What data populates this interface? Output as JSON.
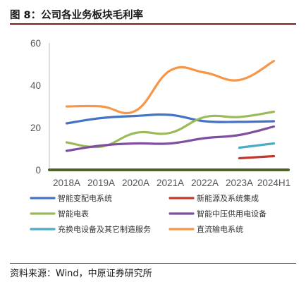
{
  "figure": {
    "title": "图 8：公司各业务板块毛利率",
    "source": "资料来源：Wind，中原证券研究所"
  },
  "chart_data": {
    "type": "line",
    "title": "",
    "xlabel": "",
    "ylabel": "",
    "categories": [
      "2018A",
      "2019A",
      "2020A",
      "2021A",
      "2022A",
      "2023A",
      "2024H1"
    ],
    "ylim": [
      0,
      60
    ],
    "yticks": [
      0,
      20,
      40,
      60
    ],
    "grid": false,
    "legend_position": "bottom",
    "series": [
      {
        "name": "智能变配电系统",
        "color": "#4472c4",
        "values": [
          22,
          24.5,
          25.5,
          26,
          23,
          22.7,
          23
        ]
      },
      {
        "name": "新能源及系统集成",
        "color": "#c0392b",
        "values": [
          null,
          null,
          null,
          null,
          null,
          5.5,
          6.5
        ]
      },
      {
        "name": "智能电表",
        "color": "#9bbb59",
        "values": [
          13,
          11,
          17.5,
          17.5,
          25,
          25,
          27.5
        ]
      },
      {
        "name": "智能中压供用电设备",
        "color": "#7f4f9f",
        "values": [
          9,
          11.5,
          12.5,
          12.5,
          15,
          16.5,
          20.5
        ]
      },
      {
        "name": "充换电设备及其它制造服务",
        "color": "#4bacc6",
        "values": [
          null,
          null,
          null,
          null,
          null,
          10.5,
          12.5
        ]
      },
      {
        "name": "直流输电系统",
        "color": "#f79646",
        "values": [
          30,
          30,
          28,
          47,
          46,
          42.5,
          51.5
        ]
      },
      {
        "name": "",
        "color": "#4f6228",
        "values": [
          0,
          0,
          0,
          0,
          0,
          0,
          0
        ]
      }
    ]
  }
}
